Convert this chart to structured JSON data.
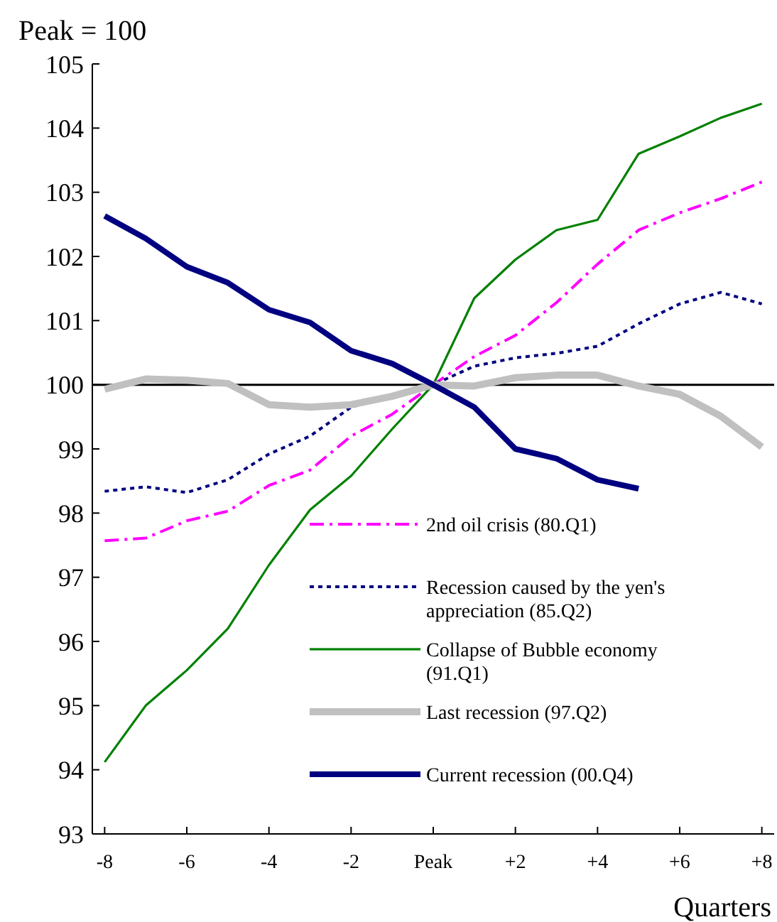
{
  "chart_data": {
    "type": "line",
    "ylabel": "Peak  = 100",
    "xlabel": "Quarters",
    "x": [
      -8,
      -7,
      -6,
      -5,
      -4,
      -3,
      -2,
      -1,
      0,
      1,
      2,
      3,
      4,
      5,
      6,
      7,
      8
    ],
    "xlim": [
      -8.3,
      8.3
    ],
    "xticks": [
      -8,
      {
        "value": -6,
        "label": "-6"
      },
      {
        "value": -4,
        "label": "-4"
      },
      {
        "value": -2,
        "label": "-2"
      },
      {
        "value": 0,
        "label": "Peak"
      },
      {
        "value": 2,
        "label": "+2"
      },
      {
        "value": 4,
        "label": "+4"
      },
      {
        "value": 6,
        "label": "+6"
      },
      {
        "value": 8,
        "label": "+8"
      }
    ],
    "ylim": [
      93,
      105
    ],
    "yticks": [
      93,
      94,
      95,
      96,
      97,
      98,
      99,
      100,
      101,
      102,
      103,
      104,
      105
    ],
    "grid": false,
    "legend": "bottom right",
    "marker": "none",
    "ref_lines": [
      {
        "axis": "y",
        "value": 100,
        "color": "#000000"
      }
    ],
    "series": [
      {
        "name": "2nd oil crisis (80.Q1)",
        "color": "#ff00ff",
        "line_style": "dashed",
        "values": [
          97.57,
          97.61,
          97.88,
          98.03,
          98.43,
          98.67,
          99.2,
          99.54,
          100,
          100.44,
          100.77,
          101.28,
          101.88,
          102.41,
          102.68,
          102.9,
          103.16
        ]
      },
      {
        "name": "Recession caused by the yen's appreciation (85.Q2)",
        "color": "#000080",
        "line_style": "dotted",
        "values": [
          98.34,
          98.41,
          98.32,
          98.52,
          98.92,
          99.2,
          99.65,
          99.85,
          100,
          100.29,
          100.42,
          100.49,
          100.6,
          100.95,
          101.26,
          101.44,
          101.26
        ]
      },
      {
        "name": "Collapse of Bubble economy (91.Q1)",
        "color": "#008000",
        "line_style": "solid",
        "values": [
          94.12,
          95.0,
          95.55,
          96.2,
          97.19,
          98.05,
          98.58,
          99.31,
          100,
          101.35,
          101.95,
          102.41,
          102.57,
          103.6,
          103.87,
          104.16,
          104.38
        ]
      },
      {
        "name": "Last recession (97.Q2)",
        "color": "#c0c0c0",
        "line_style": "solid",
        "values": [
          99.93,
          100.09,
          100.07,
          100.02,
          99.69,
          99.65,
          99.69,
          99.82,
          100,
          99.98,
          100.11,
          100.15,
          100.15,
          99.98,
          99.85,
          99.51,
          99.03
        ]
      },
      {
        "name": "Current recession (00.Q4)",
        "color": "#000080",
        "line_style": "solid",
        "values": [
          102.63,
          102.28,
          101.84,
          101.59,
          101.17,
          100.97,
          100.53,
          100.33,
          100,
          99.65,
          99.0,
          98.85,
          98.52,
          98.38,
          null,
          null,
          null
        ]
      }
    ]
  }
}
